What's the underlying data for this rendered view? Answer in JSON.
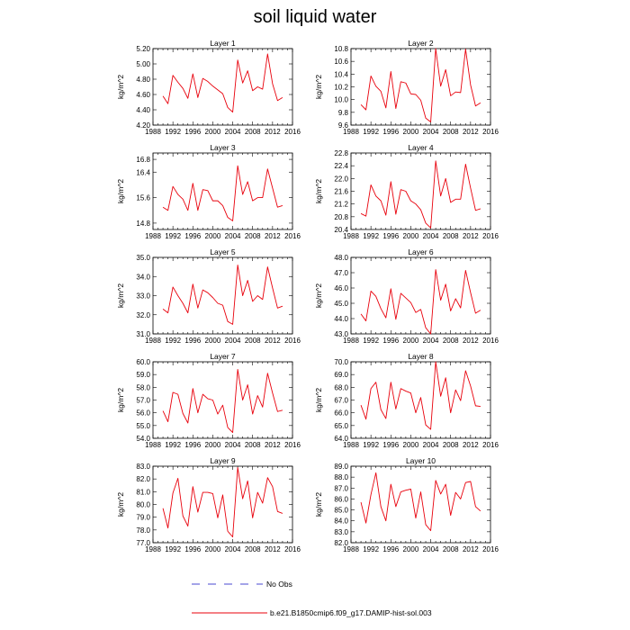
{
  "title": "soil liquid water",
  "legend": {
    "obs_label": "No Obs",
    "model_label": "b.e21.B1850cmip6.f09_g17.DAMIP-hist-sol.003",
    "obs_color": "#4a4ad0",
    "model_color": "#e8000b"
  },
  "chart_data": [
    {
      "type": "line",
      "title": "Layer 1",
      "ylabel": "kg/m^2",
      "xlim": [
        1988,
        2016
      ],
      "ylim": [
        4.2,
        5.2
      ],
      "xticks": [
        "1988",
        "1992",
        "1996",
        "2000",
        "2004",
        "2008",
        "2012",
        "2016"
      ],
      "yticks": [
        "4.20",
        "4.40",
        "4.60",
        "4.80",
        "5.00",
        "5.20"
      ],
      "x": [
        1990,
        1991,
        1992,
        1993,
        1994,
        1995,
        1996,
        1997,
        1998,
        1999,
        2000,
        2001,
        2002,
        2003,
        2004,
        2005,
        2006,
        2007,
        2008,
        2009,
        2010,
        2011,
        2012,
        2013,
        2014
      ],
      "series": [
        {
          "values": [
            4.58,
            4.48,
            4.85,
            4.76,
            4.68,
            4.55,
            4.87,
            4.56,
            4.81,
            4.77,
            4.71,
            4.66,
            4.61,
            4.43,
            4.37,
            5.05,
            4.75,
            4.91,
            4.65,
            4.7,
            4.67,
            5.13,
            4.74,
            4.52,
            4.56
          ]
        }
      ]
    },
    {
      "type": "line",
      "title": "Layer 2",
      "ylabel": "kg/m^2",
      "xlim": [
        1988,
        2016
      ],
      "ylim": [
        9.6,
        10.8
      ],
      "xticks": [
        "1988",
        "1992",
        "1996",
        "2000",
        "2004",
        "2008",
        "2012",
        "2016"
      ],
      "yticks": [
        "9.6",
        "9.8",
        "10.0",
        "10.2",
        "10.4",
        "10.6",
        "10.8"
      ],
      "x": [
        1990,
        1991,
        1992,
        1993,
        1994,
        1995,
        1996,
        1997,
        1998,
        1999,
        2000,
        2001,
        2002,
        2003,
        2004,
        2005,
        2006,
        2007,
        2008,
        2009,
        2010,
        2011,
        2012,
        2013,
        2014
      ],
      "series": [
        {
          "values": [
            9.92,
            9.84,
            10.37,
            10.21,
            10.13,
            9.87,
            10.44,
            9.86,
            10.28,
            10.26,
            10.09,
            10.08,
            9.99,
            9.71,
            9.65,
            10.8,
            10.21,
            10.47,
            10.06,
            10.12,
            10.11,
            10.79,
            10.23,
            9.9,
            9.95
          ]
        }
      ]
    },
    {
      "type": "line",
      "title": "Layer 3",
      "ylabel": "kg/m^2",
      "xlim": [
        1988,
        2016
      ],
      "ylim": [
        14.6,
        17.0
      ],
      "xticks": [
        "1988",
        "1992",
        "1996",
        "2000",
        "2004",
        "2008",
        "2012",
        "2016"
      ],
      "yticks": [
        "14.8",
        "15.6",
        "16.4",
        "16.8"
      ],
      "x": [
        1990,
        1991,
        1992,
        1993,
        1994,
        1995,
        1996,
        1997,
        1998,
        1999,
        2000,
        2001,
        2002,
        2003,
        2004,
        2005,
        2006,
        2007,
        2008,
        2009,
        2010,
        2011,
        2012,
        2013,
        2014
      ],
      "series": [
        {
          "values": [
            15.3,
            15.2,
            15.95,
            15.7,
            15.55,
            15.2,
            16.05,
            15.2,
            15.85,
            15.82,
            15.5,
            15.5,
            15.35,
            14.98,
            14.87,
            16.6,
            15.7,
            16.1,
            15.5,
            15.6,
            15.6,
            16.5,
            15.9,
            15.3,
            15.35
          ]
        }
      ]
    },
    {
      "type": "line",
      "title": "Layer 4",
      "ylabel": "kg/m^2",
      "xlim": [
        1988,
        2016
      ],
      "ylim": [
        20.4,
        22.8
      ],
      "xticks": [
        "1988",
        "1992",
        "1996",
        "2000",
        "2004",
        "2008",
        "2012",
        "2016"
      ],
      "yticks": [
        "20.4",
        "20.8",
        "21.2",
        "21.6",
        "22.0",
        "22.4",
        "22.8"
      ],
      "x": [
        1990,
        1991,
        1992,
        1993,
        1994,
        1995,
        1996,
        1997,
        1998,
        1999,
        2000,
        2001,
        2002,
        2003,
        2004,
        2005,
        2006,
        2007,
        2008,
        2009,
        2010,
        2011,
        2012,
        2013,
        2014
      ],
      "series": [
        {
          "values": [
            20.9,
            20.82,
            21.8,
            21.45,
            21.3,
            20.85,
            21.9,
            20.88,
            21.65,
            21.6,
            21.3,
            21.2,
            21.02,
            20.6,
            20.45,
            22.55,
            21.45,
            22.0,
            21.25,
            21.35,
            21.35,
            22.45,
            21.7,
            21.0,
            21.05
          ]
        }
      ]
    },
    {
      "type": "line",
      "title": "Layer 5",
      "ylabel": "kg/m^2",
      "xlim": [
        1988,
        2016
      ],
      "ylim": [
        31.0,
        35.0
      ],
      "xticks": [
        "1988",
        "1992",
        "1996",
        "2000",
        "2004",
        "2008",
        "2012",
        "2016"
      ],
      "yticks": [
        "31.0",
        "32.0",
        "33.0",
        "34.0",
        "35.0"
      ],
      "x": [
        1990,
        1991,
        1992,
        1993,
        1994,
        1995,
        1996,
        1997,
        1998,
        1999,
        2000,
        2001,
        2002,
        2003,
        2004,
        2005,
        2006,
        2007,
        2008,
        2009,
        2010,
        2011,
        2012,
        2013,
        2014
      ],
      "series": [
        {
          "values": [
            32.3,
            32.1,
            33.45,
            33.0,
            32.6,
            32.1,
            33.6,
            32.35,
            33.3,
            33.15,
            32.9,
            32.6,
            32.5,
            31.65,
            31.5,
            34.6,
            33.0,
            33.8,
            32.7,
            33.0,
            32.8,
            34.5,
            33.4,
            32.35,
            32.45
          ]
        }
      ]
    },
    {
      "type": "line",
      "title": "Layer 6",
      "ylabel": "kg/m^2",
      "xlim": [
        1988,
        2016
      ],
      "ylim": [
        43.0,
        48.0
      ],
      "xticks": [
        "1988",
        "1992",
        "1996",
        "2000",
        "2004",
        "2008",
        "2012",
        "2016"
      ],
      "yticks": [
        "43.0",
        "44.0",
        "45.0",
        "46.0",
        "47.0",
        "48.0"
      ],
      "x": [
        1990,
        1991,
        1992,
        1993,
        1994,
        1995,
        1996,
        1997,
        1998,
        1999,
        2000,
        2001,
        2002,
        2003,
        2004,
        2005,
        2006,
        2007,
        2008,
        2009,
        2010,
        2011,
        2012,
        2013,
        2014
      ],
      "series": [
        {
          "values": [
            44.3,
            43.85,
            45.8,
            45.45,
            44.65,
            44.05,
            45.95,
            43.95,
            45.65,
            45.35,
            45.05,
            44.4,
            44.6,
            43.4,
            43.0,
            47.2,
            45.2,
            46.25,
            44.5,
            45.3,
            44.7,
            47.15,
            45.7,
            44.35,
            44.55
          ]
        }
      ]
    },
    {
      "type": "line",
      "title": "Layer 7",
      "ylabel": "kg/m^2",
      "xlim": [
        1988,
        2016
      ],
      "ylim": [
        54.0,
        60.0
      ],
      "xticks": [
        "1988",
        "1992",
        "1996",
        "2000",
        "2004",
        "2008",
        "2012",
        "2016"
      ],
      "yticks": [
        "54.0",
        "55.0",
        "56.0",
        "57.0",
        "58.0",
        "59.0",
        "60.0"
      ],
      "x": [
        1990,
        1991,
        1992,
        1993,
        1994,
        1995,
        1996,
        1997,
        1998,
        1999,
        2000,
        2001,
        2002,
        2003,
        2004,
        2005,
        2006,
        2007,
        2008,
        2009,
        2010,
        2011,
        2012,
        2013,
        2014
      ],
      "series": [
        {
          "values": [
            56.15,
            55.3,
            57.6,
            57.45,
            55.95,
            55.2,
            57.9,
            56.0,
            57.45,
            57.1,
            57.0,
            55.9,
            56.6,
            54.85,
            54.45,
            59.4,
            57.0,
            58.2,
            55.9,
            57.35,
            56.45,
            59.1,
            57.55,
            56.1,
            56.2
          ]
        }
      ]
    },
    {
      "type": "line",
      "title": "Layer 8",
      "ylabel": "kg/m^2",
      "xlim": [
        1988,
        2016
      ],
      "ylim": [
        64.0,
        70.0
      ],
      "xticks": [
        "1988",
        "1992",
        "1996",
        "2000",
        "2004",
        "2008",
        "2012",
        "2016"
      ],
      "yticks": [
        "64.0",
        "65.0",
        "66.0",
        "67.0",
        "68.0",
        "69.0",
        "70.0"
      ],
      "x": [
        1990,
        1991,
        1992,
        1993,
        1994,
        1995,
        1996,
        1997,
        1998,
        1999,
        2000,
        2001,
        2002,
        2003,
        2004,
        2005,
        2006,
        2007,
        2008,
        2009,
        2010,
        2011,
        2012,
        2013,
        2014
      ],
      "series": [
        {
          "values": [
            66.6,
            65.5,
            67.9,
            68.4,
            66.25,
            65.55,
            68.4,
            66.3,
            67.9,
            67.7,
            67.55,
            66.0,
            67.2,
            65.05,
            64.7,
            70.0,
            67.3,
            68.75,
            66.0,
            67.8,
            66.95,
            69.3,
            68.1,
            66.55,
            66.5
          ]
        }
      ]
    },
    {
      "type": "line",
      "title": "Layer 9",
      "ylabel": "kg/m^2",
      "xlim": [
        1988,
        2016
      ],
      "ylim": [
        77.0,
        83.0
      ],
      "xticks": [
        "1988",
        "1992",
        "1996",
        "2000",
        "2004",
        "2008",
        "2012",
        "2016"
      ],
      "yticks": [
        "77.0",
        "78.0",
        "79.0",
        "80.0",
        "81.0",
        "82.0",
        "83.0"
      ],
      "x": [
        1990,
        1991,
        1992,
        1993,
        1994,
        1995,
        1996,
        1997,
        1998,
        1999,
        2000,
        2001,
        2002,
        2003,
        2004,
        2005,
        2006,
        2007,
        2008,
        2009,
        2010,
        2011,
        2012,
        2013,
        2014
      ],
      "series": [
        {
          "values": [
            79.7,
            78.15,
            80.9,
            82.05,
            79.1,
            78.3,
            81.4,
            79.4,
            80.95,
            80.95,
            80.85,
            78.95,
            80.75,
            77.9,
            77.45,
            82.9,
            80.45,
            81.85,
            78.95,
            80.95,
            80.1,
            82.1,
            81.4,
            79.45,
            79.3
          ]
        }
      ]
    },
    {
      "type": "line",
      "title": "Layer 10",
      "ylabel": "kg/m^2",
      "xlim": [
        1988,
        2016
      ],
      "ylim": [
        82.0,
        89.0
      ],
      "xticks": [
        "1988",
        "1992",
        "1996",
        "2000",
        "2004",
        "2008",
        "2012",
        "2016"
      ],
      "yticks": [
        "82.0",
        "83.0",
        "84.0",
        "85.0",
        "86.0",
        "87.0",
        "88.0",
        "89.0"
      ],
      "x": [
        1990,
        1991,
        1992,
        1993,
        1994,
        1995,
        1996,
        1997,
        1998,
        1999,
        2000,
        2001,
        2002,
        2003,
        2004,
        2005,
        2006,
        2007,
        2008,
        2009,
        2010,
        2011,
        2012,
        2013,
        2014
      ],
      "series": [
        {
          "values": [
            85.7,
            83.8,
            86.4,
            88.4,
            85.3,
            84.0,
            87.35,
            85.3,
            86.65,
            86.8,
            86.9,
            84.25,
            86.65,
            83.65,
            83.1,
            87.7,
            86.45,
            87.35,
            84.5,
            86.6,
            86.0,
            87.5,
            87.6,
            85.3,
            84.9
          ]
        }
      ]
    }
  ]
}
